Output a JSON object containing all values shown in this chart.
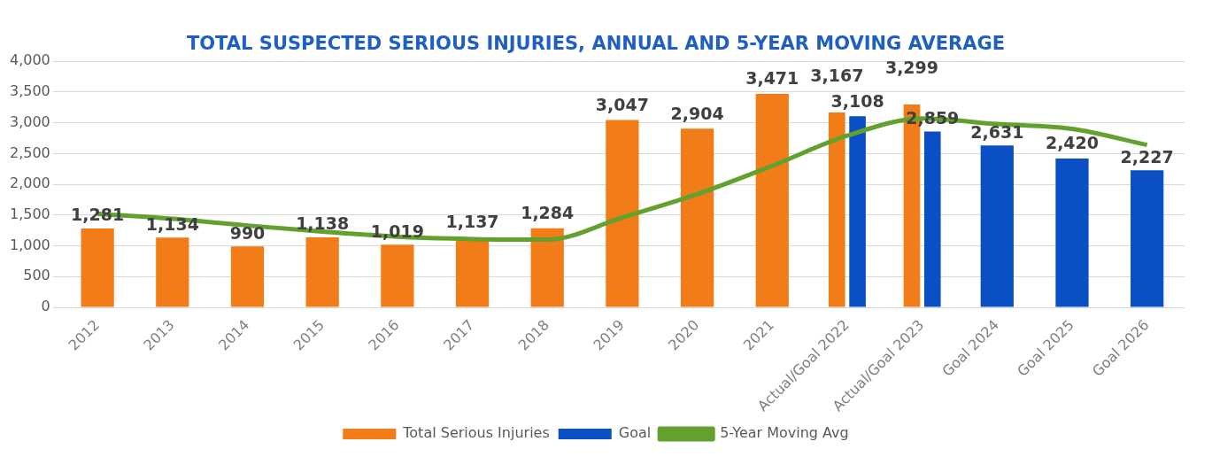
{
  "chart_data": {
    "type": "bar",
    "title": "TOTAL SUSPECTED SERIOUS INJURIES, ANNUAL AND 5-YEAR MOVING AVERAGE",
    "categories": [
      "2012",
      "2013",
      "2014",
      "2015",
      "2016",
      "2017",
      "2018",
      "2019",
      "2020",
      "2021",
      "Actual/Goal 2022",
      "Actual/Goal 2023",
      "Goal 2024",
      "Goal 2025",
      "Goal 2026"
    ],
    "series": [
      {
        "name": "Total Serious Injuries",
        "color": "#f27c17",
        "values": [
          1281,
          1134,
          990,
          1138,
          1019,
          1137,
          1284,
          3047,
          2904,
          3471,
          3167,
          3299,
          null,
          null,
          null
        ],
        "value_labels": [
          "1,281",
          "1,134",
          "990",
          "1,138",
          "1,019",
          "1,137",
          "1,284",
          "3,047",
          "2,904",
          "3,471",
          "3,167",
          "3,299",
          null,
          null,
          null
        ]
      },
      {
        "name": "Goal",
        "color": "#0b4fc4",
        "values": [
          null,
          null,
          null,
          null,
          null,
          null,
          null,
          null,
          null,
          null,
          3108,
          2859,
          2631,
          2420,
          2227
        ],
        "value_labels": [
          null,
          null,
          null,
          null,
          null,
          null,
          null,
          null,
          null,
          null,
          "3,108",
          "2,859",
          "2,631",
          "2,420",
          "2,227"
        ]
      },
      {
        "name": "5-Year Moving Avg",
        "type": "line",
        "color": "#63a12e",
        "values": [
          1520,
          1440,
          1330,
          1230,
          1150,
          1110,
          1100,
          1460,
          1840,
          2300,
          2790,
          3070,
          2980,
          2900,
          2640
        ]
      }
    ],
    "ylim": [
      0,
      4000
    ],
    "yticks": [
      0,
      500,
      {
        "value": 1000,
        "label": "1,000"
      },
      {
        "value": 1500,
        "label": "1,500"
      },
      {
        "value": 2000,
        "label": "2,000"
      },
      {
        "value": 2500,
        "label": "2,500"
      },
      {
        "value": 3000,
        "label": "3,000"
      },
      {
        "value": 3500,
        "label": "3,500"
      },
      {
        "value": 4000,
        "label": "4,000"
      }
    ],
    "grid": "y",
    "legend": "bottom",
    "marker": "none"
  }
}
